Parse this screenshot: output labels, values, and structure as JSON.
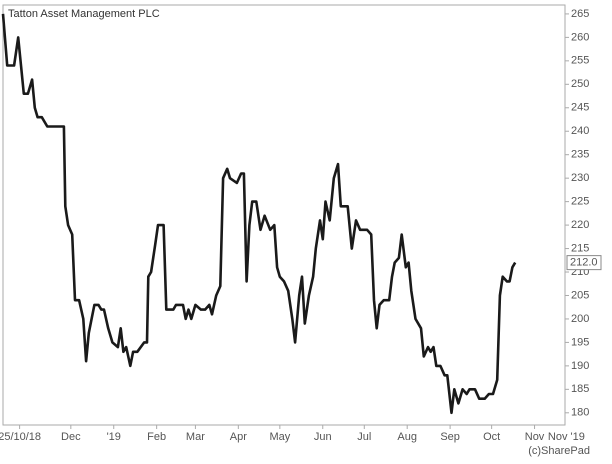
{
  "chart_data": {
    "type": "line",
    "title": "Tatton Asset Management PLC",
    "credit": "(c)SharePad",
    "x": [
      -12,
      -9,
      -4,
      -1,
      1,
      3,
      6,
      9,
      11,
      13,
      16,
      20,
      32,
      33,
      35,
      38,
      40,
      43,
      46,
      48,
      50,
      52,
      54,
      57,
      59,
      61,
      64,
      67,
      71,
      73,
      75,
      77,
      80,
      82,
      85,
      90,
      92,
      93,
      95,
      98,
      100,
      104,
      106,
      111,
      113,
      118,
      120,
      122,
      124,
      127,
      131,
      134,
      137,
      139,
      142,
      145,
      147,
      150,
      152,
      157,
      160,
      162,
      164,
      166,
      168,
      171,
      174,
      177,
      181,
      184,
      186,
      188,
      191,
      194,
      197,
      199,
      202,
      204,
      206,
      209,
      212,
      214,
      217,
      219,
      221,
      224,
      227,
      230,
      232,
      237,
      240,
      243,
      246,
      251,
      254,
      256,
      258,
      260,
      263,
      267,
      269,
      271,
      274,
      276,
      279,
      281,
      283,
      286,
      290,
      292,
      295,
      297,
      299,
      301,
      304,
      307,
      309,
      312,
      314,
      317,
      320,
      323,
      325,
      329,
      332,
      336,
      339,
      342,
      345,
      347,
      349,
      352,
      354,
      356,
      358
    ],
    "series": [
      {
        "name": "Tatton Asset Management PLC",
        "color": "#1a1a1a",
        "values": [
          265,
          254,
          254,
          260,
          254,
          248,
          248,
          251,
          245,
          243,
          243,
          241,
          241,
          224,
          220,
          218,
          204,
          204,
          200,
          191,
          197,
          200,
          203,
          203,
          202,
          202,
          198,
          195,
          194,
          198,
          193,
          194,
          190,
          193,
          193,
          195,
          195,
          209,
          210,
          216,
          220,
          220,
          202,
          202,
          203,
          203,
          200,
          202,
          200,
          203,
          202,
          202,
          203,
          201,
          205,
          207,
          230,
          232,
          230,
          229,
          231,
          231,
          208,
          220,
          225,
          225,
          219,
          222,
          219,
          220,
          211,
          209,
          208,
          206,
          200,
          195,
          205,
          209,
          199,
          205,
          209,
          215,
          221,
          217,
          225,
          221,
          230,
          233,
          224,
          224,
          215,
          221,
          219,
          219,
          218,
          204,
          198,
          203,
          204,
          204,
          209,
          212,
          213,
          218,
          211,
          212,
          206,
          200,
          198,
          192,
          194,
          193,
          194,
          190,
          190,
          188,
          188,
          180,
          185,
          182,
          185,
          184,
          185,
          185,
          183,
          183,
          184,
          184,
          187,
          205,
          209,
          208,
          208,
          211,
          212
        ],
        "value_labels": [
          null,
          null,
          null,
          null,
          null,
          null,
          null,
          null,
          null,
          null,
          null,
          null,
          null,
          null,
          null,
          null,
          null,
          null,
          null,
          null,
          null,
          null,
          null,
          null,
          null,
          null,
          null,
          null,
          null,
          null,
          null,
          null,
          null,
          null,
          null,
          null,
          null,
          null,
          null,
          null,
          null,
          null,
          null,
          null,
          null,
          null,
          null,
          null,
          null,
          null,
          null,
          null,
          null,
          null,
          null,
          null,
          null,
          null,
          null,
          null,
          null,
          null,
          null,
          null,
          null,
          null,
          null,
          null,
          null,
          null,
          null,
          null,
          null,
          null,
          null,
          null,
          null,
          null,
          null,
          null,
          null,
          null,
          null,
          null,
          null,
          null,
          null,
          null,
          null,
          null,
          null,
          null,
          null,
          null,
          null,
          null,
          null,
          null,
          null,
          null,
          null,
          null,
          null,
          null,
          null,
          null,
          null,
          null,
          null,
          null,
          null,
          null,
          null,
          null,
          null,
          null,
          null,
          null,
          null,
          null,
          null,
          null,
          null,
          null,
          null,
          null,
          null,
          null,
          null,
          null,
          null,
          null,
          null,
          null,
          "212.0"
        ]
      }
    ],
    "xlim": [
      -12,
      394
    ],
    "xticks": [
      {
        "value": 0,
        "label": "25/10/18"
      },
      {
        "value": 37,
        "label": "Dec"
      },
      {
        "value": 68,
        "label": "'19"
      },
      {
        "value": 99,
        "label": "Feb"
      },
      {
        "value": 127,
        "label": "Mar"
      },
      {
        "value": 158,
        "label": "Apr"
      },
      {
        "value": 188,
        "label": "May"
      },
      {
        "value": 219,
        "label": "Jun"
      },
      {
        "value": 249,
        "label": "Jul"
      },
      {
        "value": 280,
        "label": "Aug"
      },
      {
        "value": 311,
        "label": "Sep"
      },
      {
        "value": 341,
        "label": "Oct"
      },
      {
        "value": 372,
        "label": "Nov"
      },
      {
        "value": 395,
        "label": "Nov '19"
      }
    ],
    "ylim": [
      177.4,
      266.9
    ],
    "yticks": [
      180,
      185,
      190,
      195,
      200,
      205,
      210,
      215,
      220,
      225,
      230,
      235,
      240,
      245,
      250,
      255,
      260,
      265
    ],
    "grid": false
  }
}
